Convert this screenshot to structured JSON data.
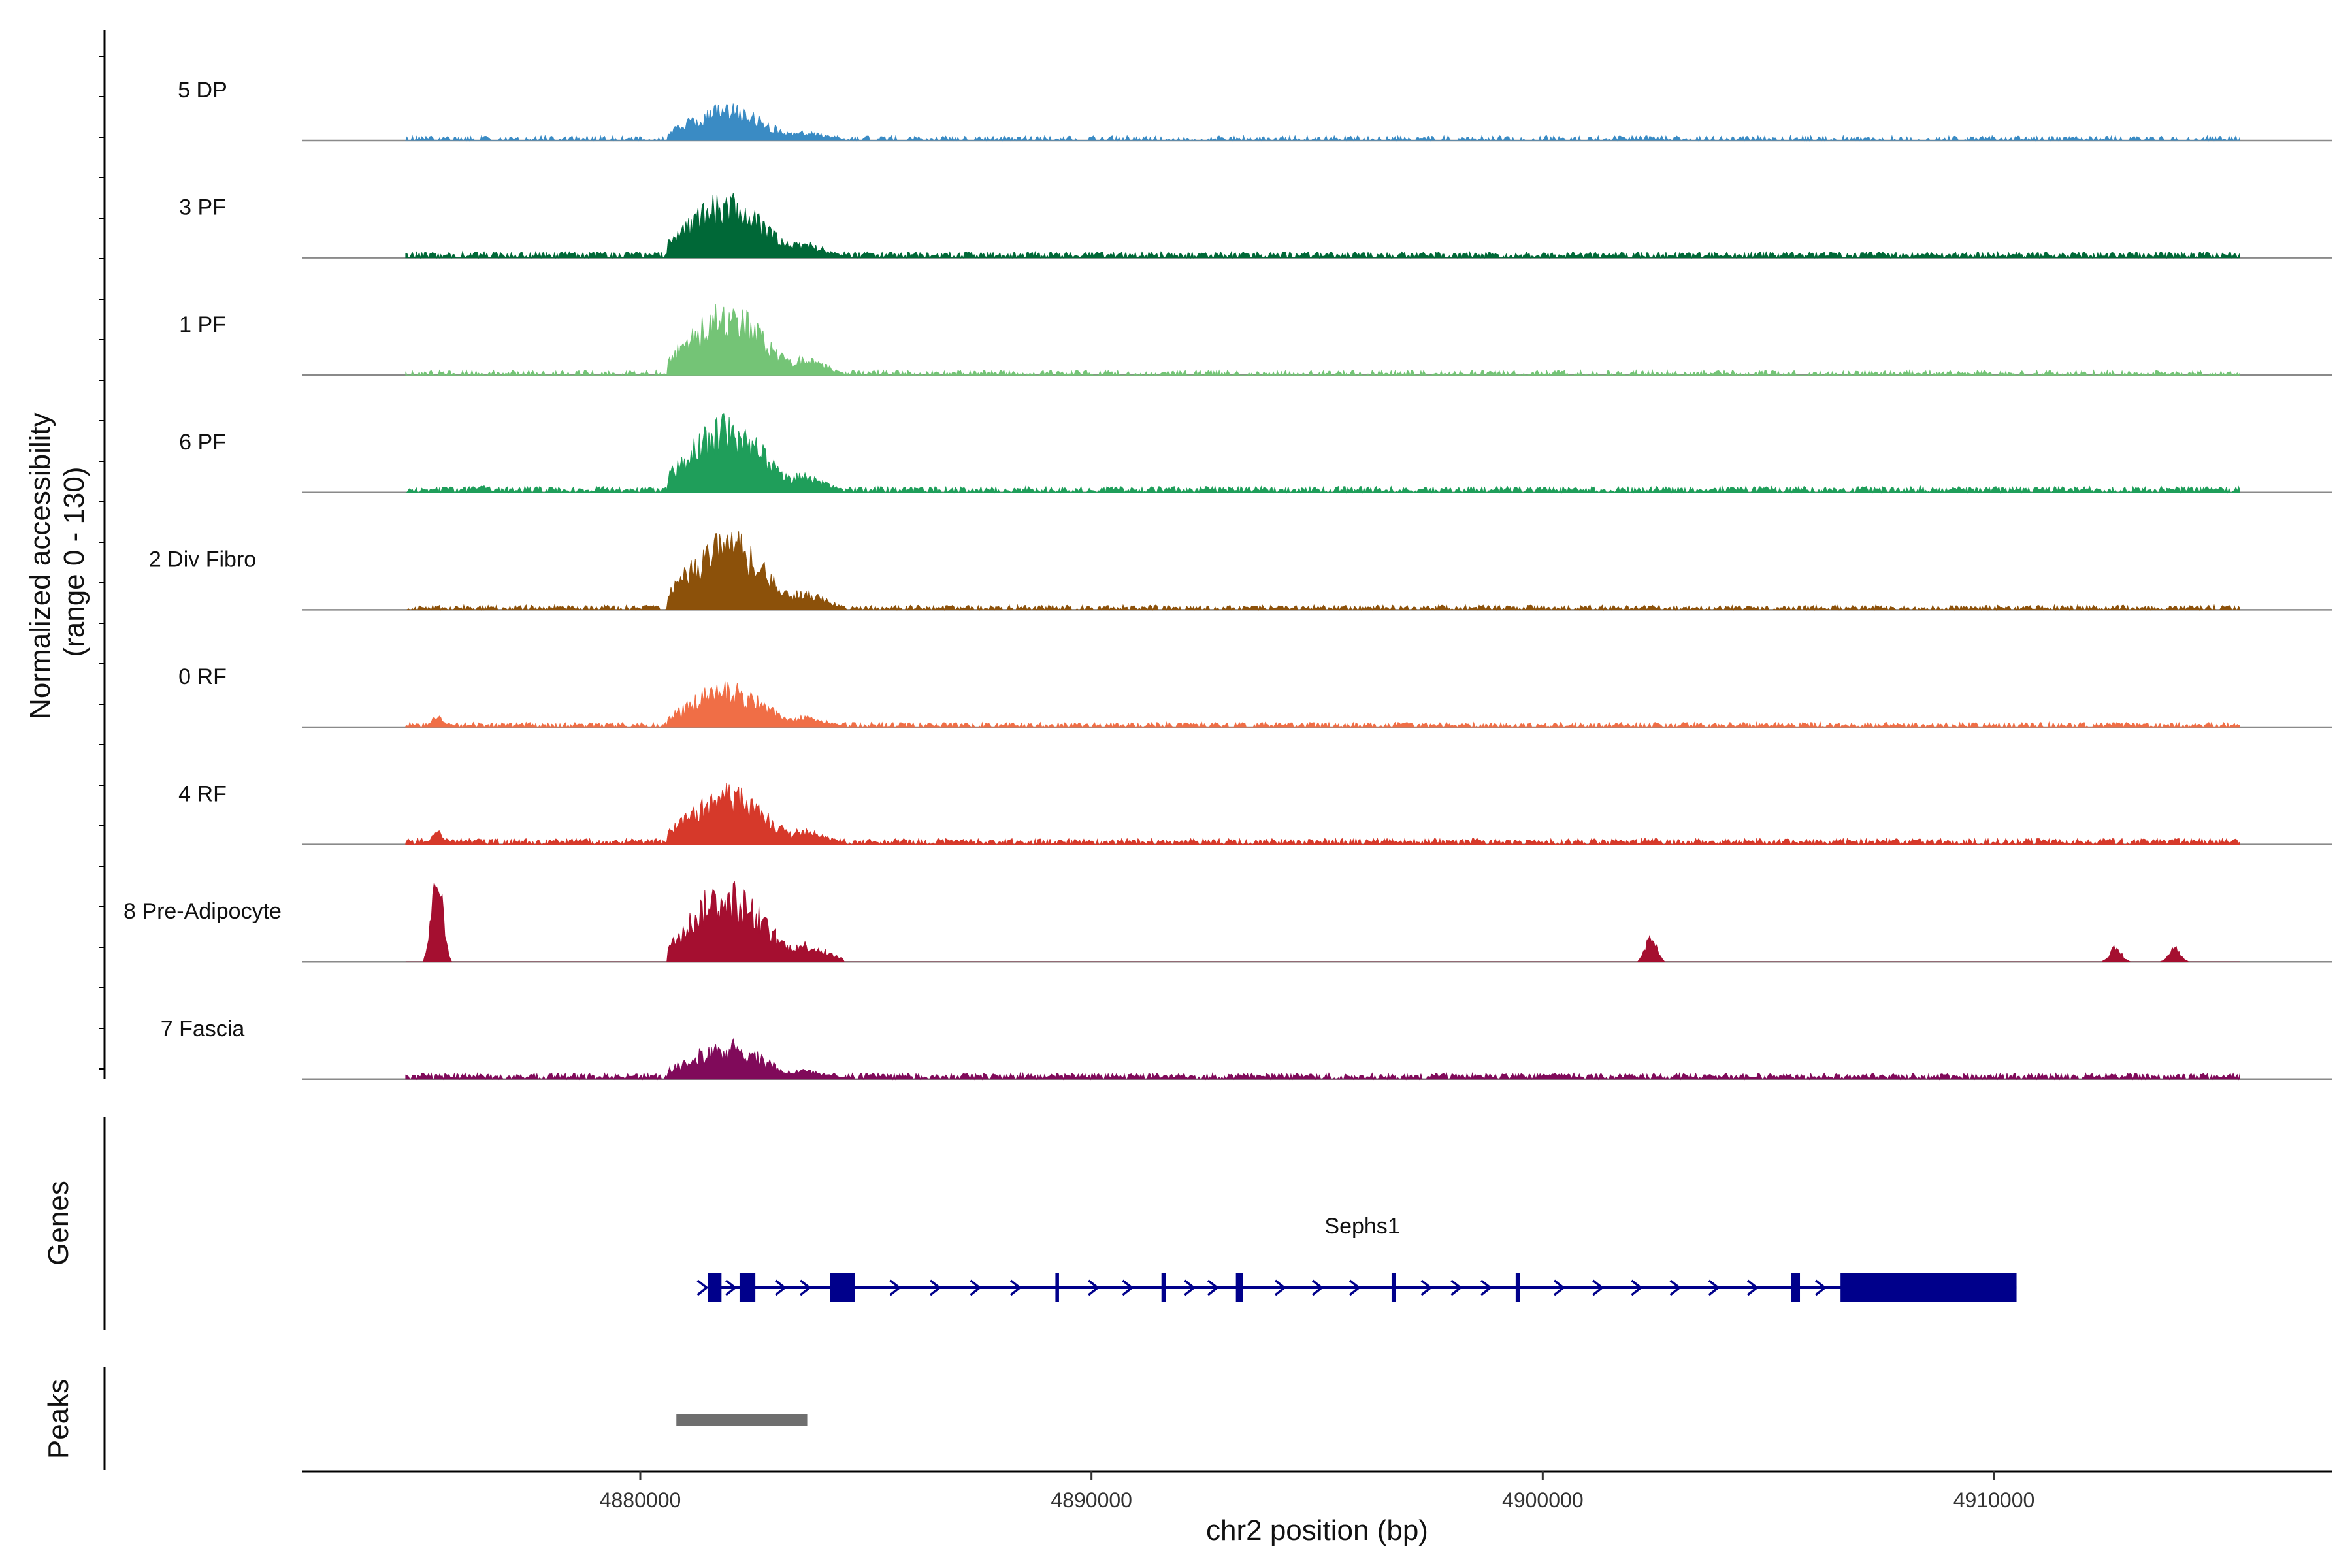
{
  "chart_data": {
    "type": "coverage",
    "title": "",
    "xlabel": "chr2 position (bp)",
    "xlim": [
      4872500,
      4917500
    ],
    "x_ticks": [
      4880000,
      4890000,
      4900000,
      4910000
    ],
    "tick_labels": [
      "4880000",
      "4890000",
      "4900000",
      "4910000"
    ],
    "coverage_ylabel": "Normalized accessibility\n(range 0 - 130)",
    "ylim": [
      0,
      130
    ],
    "grid": false,
    "legend": "none",
    "tracks": [
      {
        "name": "5 DP",
        "color": "#3a8bc4",
        "peak": 45,
        "baseline": 4,
        "bg_density": 0.5,
        "extra": [
          [
            4875300,
            2
          ]
        ]
      },
      {
        "name": "3 PF",
        "color": "#006837",
        "peak": 80,
        "baseline": 5,
        "bg_density": 0.75,
        "extra": []
      },
      {
        "name": "1 PF",
        "color": "#74c476",
        "peak": 90,
        "baseline": 4,
        "bg_density": 0.5,
        "extra": []
      },
      {
        "name": "6 PF",
        "color": "#1f9e5a",
        "peak": 95,
        "baseline": 5,
        "bg_density": 0.75,
        "extra": [
          [
            4876500,
            9
          ]
        ]
      },
      {
        "name": "2 Div Fibro",
        "color": "#8c510a",
        "peak": 100,
        "baseline": 4,
        "bg_density": 0.65,
        "extra": [
          [
            4882700,
            60
          ]
        ]
      },
      {
        "name": "0 RF",
        "color": "#f06e46",
        "peak": 55,
        "baseline": 4,
        "bg_density": 0.7,
        "extra": [
          [
            4875500,
            15
          ]
        ]
      },
      {
        "name": "4 RF",
        "color": "#d6392a",
        "peak": 75,
        "baseline": 5,
        "bg_density": 0.75,
        "extra": [
          [
            4875500,
            18
          ]
        ]
      },
      {
        "name": "8 Pre-Adipocyte",
        "color": "#a50f30",
        "peak": 100,
        "baseline": 0,
        "bg_density": 0.12,
        "extra": [
          [
            4875500,
            120
          ],
          [
            4882400,
            40
          ],
          [
            4902400,
            35
          ],
          [
            4912700,
            20
          ],
          [
            4914000,
            20
          ]
        ]
      },
      {
        "name": "7 Fascia",
        "color": "#800a5a",
        "peak": 48,
        "baseline": 5,
        "bg_density": 0.8,
        "extra": []
      }
    ],
    "gene": {
      "name": "Sephs1",
      "strand": "+",
      "start": 4881500,
      "end": 4910500,
      "exons": [
        [
          4881500,
          4881800
        ],
        [
          4882200,
          4882550
        ],
        [
          4884200,
          4884750
        ],
        [
          4889200,
          4889280
        ],
        [
          4891550,
          4891650
        ],
        [
          4893200,
          4893350
        ],
        [
          4896650,
          4896750
        ],
        [
          4899400,
          4899500
        ],
        [
          4905500,
          4905700
        ],
        [
          4906600,
          4910500
        ]
      ],
      "color": "#00008b"
    },
    "peaks": [
      {
        "start": 4880800,
        "end": 4883700,
        "color": "#6e6e6e"
      }
    ],
    "genes_ylabel": "Genes",
    "peaks_ylabel": "Peaks"
  }
}
